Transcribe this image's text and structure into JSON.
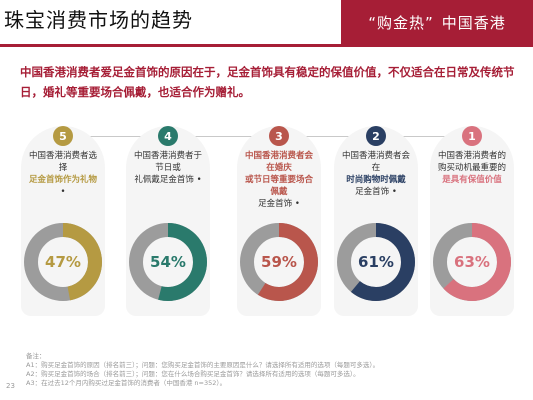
{
  "page": {
    "heading": "珠宝消费市场的趋势",
    "banner": {
      "left": "“购金热”",
      "right": "中国香港"
    },
    "intro": "中国香港消费者爱足金首饰的原因在于，足金首饰具有稳定的保值价值，不仅适合在日常及传统节日，婚礼等重要场合佩戴，也适合作为赠礼。",
    "notes": [
      "备注：",
      "A1：购买足金首饰的原因（排名前三）；问题：您购买足金首饰的主要原因是什么？请选择所有适用的选项（每题可多选）。",
      "A2：购买足金首饰的场合（排名前三）；问题：您在什么场合购买足金首饰？请选择所有适用的选项（每题可多选）。",
      "A3：在过去12个月内购买过足金首饰的消费者（中国香港 n=352）。"
    ],
    "page_number": "23"
  },
  "chart_data": {
    "type": "pie",
    "subtype": "donut-set",
    "categories": [
      "1",
      "2",
      "3",
      "4",
      "5"
    ],
    "values": [
      63,
      61,
      59,
      54,
      47
    ],
    "unit": "%",
    "labels": [
      "63%",
      "61%",
      "59%",
      "54%",
      "47%"
    ],
    "colors": [
      "#d9727e",
      "#2a3f63",
      "#b9564c",
      "#2a7a6c",
      "#b59a42"
    ],
    "remainder_color": "#9c9c9c",
    "descriptions": [
      {
        "lines": [
          "中国香港消费者的",
          "购买动机最重要的",
          "是具有保值价值"
        ],
        "highlight": [
          2
        ]
      },
      {
        "lines": [
          "中国香港消费者会在",
          "时尚购物时佩戴",
          "足金首饰 •"
        ],
        "highlight": [
          1
        ]
      },
      {
        "lines": [
          "中国香港消费者会在婚庆",
          "或节日等重要场合佩戴",
          "足金首饰 •"
        ],
        "highlight": [
          0,
          1
        ]
      },
      {
        "lines": [
          "中国香港消费者于节日或",
          "礼佩戴足金首饰 •"
        ],
        "highlight": []
      },
      {
        "lines": [
          "中国香港消费者选择",
          "足金首饰作为礼物",
          "•"
        ],
        "highlight": [
          1
        ]
      }
    ]
  }
}
